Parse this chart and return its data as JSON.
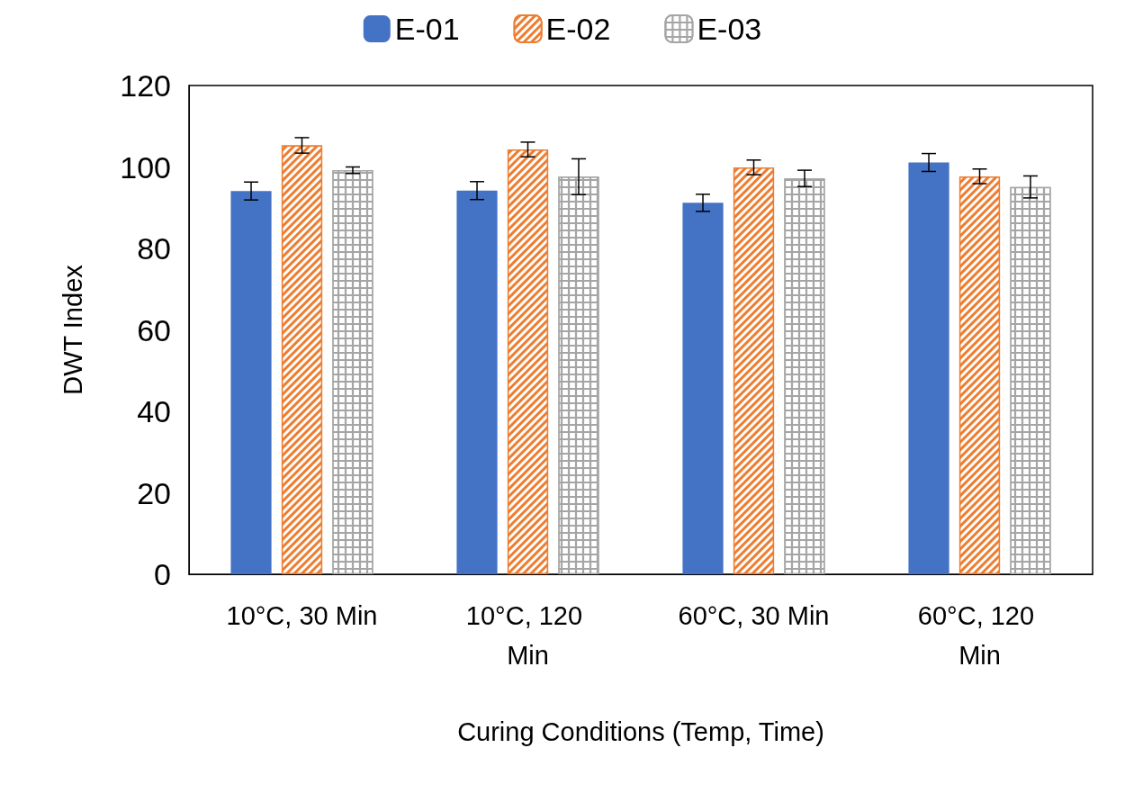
{
  "chart_data": {
    "type": "bar",
    "xlabel": "Curing Conditions (Temp, Time)",
    "ylabel": "DWT Index",
    "categories": [
      "10°C, 30 Min",
      "10°C, 120 Min",
      "60°C, 30 Min",
      "60°C, 120 Min"
    ],
    "series": [
      {
        "name": "E-01",
        "color": "#4472c4",
        "values": [
          94.1,
          94.2,
          91.2,
          101.1
        ],
        "errors": [
          2.2,
          2.2,
          2.1,
          2.2
        ]
      },
      {
        "name": "E-02",
        "color": "#ed7d31",
        "values": [
          105.3,
          104.3,
          99.9,
          97.7
        ],
        "errors": [
          1.9,
          1.8,
          1.8,
          1.8
        ]
      },
      {
        "name": "E-03",
        "color": "#a5a5a5",
        "values": [
          99.2,
          97.6,
          97.2,
          95.1
        ],
        "errors": [
          0.8,
          4.4,
          2.0,
          2.7
        ]
      }
    ],
    "ylim": [
      0,
      120
    ],
    "yticks": [
      0,
      20,
      40,
      60,
      80,
      100,
      120
    ],
    "grid": false,
    "legend": "top"
  }
}
